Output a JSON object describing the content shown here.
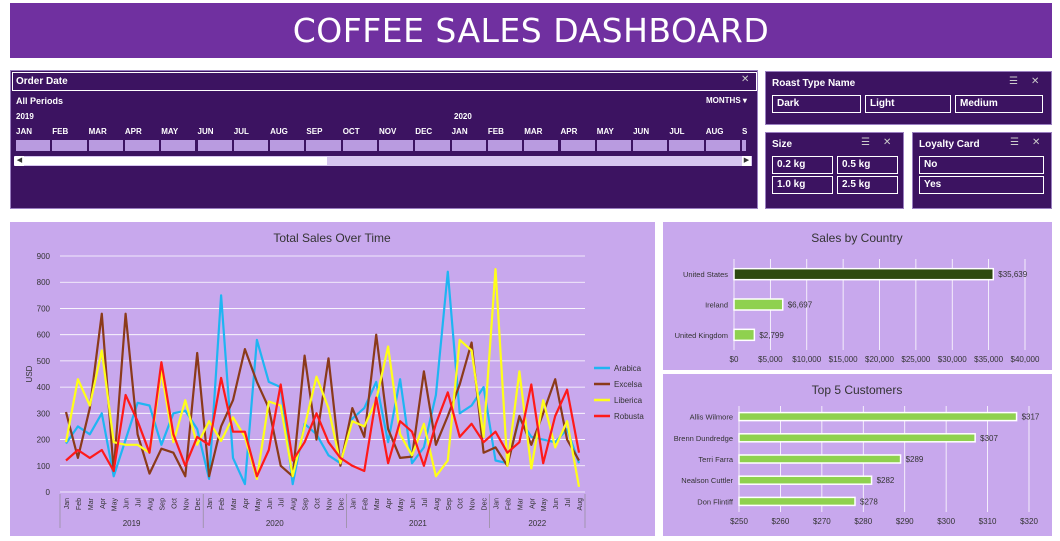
{
  "title": "COFFEE SALES DASHBOARD",
  "timeline": {
    "title": "Order Date",
    "period_label": "All Periods",
    "granularity": "MONTHS",
    "years": [
      "2019",
      "2020"
    ],
    "months": [
      "JAN",
      "FEB",
      "MAR",
      "APR",
      "MAY",
      "JUN",
      "JUL",
      "AUG",
      "SEP",
      "OCT",
      "NOV",
      "DEC",
      "JAN",
      "FEB",
      "MAR",
      "APR",
      "MAY",
      "JUN",
      "JUL",
      "AUG",
      "S"
    ]
  },
  "roast_slicer": {
    "title": "Roast Type Name",
    "items": [
      "Dark",
      "Light",
      "Medium"
    ]
  },
  "size_slicer": {
    "title": "Size",
    "items": [
      "0.2 kg",
      "0.5 kg",
      "1.0 kg",
      "2.5 kg"
    ]
  },
  "loyalty_slicer": {
    "title": "Loyalty Card",
    "items": [
      "No",
      "Yes"
    ]
  },
  "colors": {
    "banner": "#7030a0",
    "arabica": "#1fb5f2",
    "excelsa": "#8b3a1a",
    "liberica": "#ffff1a",
    "robusta": "#ff1a1a",
    "country_top": "#2e4a10",
    "bars": "#8fd14f"
  },
  "chart_data": [
    {
      "type": "line",
      "title": "Total Sales Over Time",
      "ylabel": "USD",
      "ylim": [
        0,
        900
      ],
      "yticks": [
        "0",
        "100",
        "200",
        "300",
        "400",
        "500",
        "600",
        "700",
        "800",
        "900"
      ],
      "years": [
        "2019",
        "2020",
        "2021",
        "2022"
      ],
      "month_labels": [
        "Jan",
        "Feb",
        "Mar",
        "Apr",
        "May",
        "Jun",
        "Jul",
        "Aug",
        "Sep",
        "Oct",
        "Nov",
        "Dec",
        "Jan",
        "Feb",
        "Mar",
        "Apr",
        "May",
        "Jun",
        "Jul",
        "Aug",
        "Sep",
        "Oct",
        "Nov",
        "Dec",
        "Jan",
        "Feb",
        "Mar",
        "Apr",
        "May",
        "Jun",
        "Jul",
        "Aug",
        "Sep",
        "Oct",
        "Nov",
        "Dec",
        "Jan",
        "Feb",
        "Mar",
        "Apr",
        "May",
        "Jun",
        "Jul",
        "Aug"
      ],
      "series": [
        {
          "name": "Arabica",
          "values": [
            185,
            250,
            220,
            300,
            60,
            200,
            340,
            330,
            180,
            300,
            310,
            240,
            50,
            750,
            130,
            30,
            580,
            420,
            400,
            30,
            260,
            220,
            140,
            110,
            280,
            320,
            420,
            190,
            430,
            110,
            170,
            370,
            840,
            300,
            330,
            400,
            120,
            110,
            280,
            210,
            200,
            190,
            240,
            110
          ]
        },
        {
          "name": "Excelsa",
          "values": [
            305,
            130,
            320,
            680,
            80,
            680,
            220,
            70,
            165,
            150,
            60,
            530,
            60,
            250,
            350,
            545,
            420,
            320,
            100,
            60,
            520,
            200,
            510,
            100,
            320,
            210,
            600,
            240,
            130,
            135,
            460,
            180,
            290,
            410,
            570,
            150,
            170,
            100,
            290,
            180,
            300,
            430,
            200,
            120
          ]
        },
        {
          "name": "Liberica",
          "values": [
            190,
            430,
            330,
            540,
            190,
            180,
            180,
            150,
            460,
            190,
            350,
            180,
            270,
            195,
            285,
            210,
            50,
            345,
            330,
            60,
            250,
            440,
            320,
            110,
            270,
            250,
            350,
            555,
            220,
            140,
            260,
            60,
            120,
            580,
            540,
            210,
            850,
            100,
            460,
            90,
            350,
            170,
            270,
            20
          ]
        },
        {
          "name": "Robusta",
          "values": [
            120,
            160,
            130,
            160,
            80,
            370,
            270,
            150,
            495,
            220,
            100,
            210,
            180,
            435,
            230,
            230,
            60,
            160,
            410,
            120,
            190,
            300,
            190,
            130,
            100,
            80,
            360,
            110,
            270,
            230,
            100,
            260,
            380,
            210,
            260,
            190,
            230,
            150,
            190,
            410,
            110,
            290,
            390,
            150
          ]
        }
      ]
    },
    {
      "type": "bar",
      "orientation": "horizontal",
      "title": "Sales by Country",
      "categories": [
        "United States",
        "Ireland",
        "United Kingdom"
      ],
      "values": [
        35639,
        6697,
        2799
      ],
      "data_labels": [
        "$35,639",
        "$6,697",
        "$2,799"
      ],
      "xlim": [
        0,
        40000
      ],
      "xticks": [
        "$0",
        "$5,000",
        "$10,000",
        "$15,000",
        "$20,000",
        "$25,000",
        "$30,000",
        "$35,000",
        "$40,000"
      ]
    },
    {
      "type": "bar",
      "orientation": "horizontal",
      "title": "Top 5 Customers",
      "categories": [
        "Allis Wilmore",
        "Brenn Dundredge",
        "Terri Farra",
        "Nealson Cuttler",
        "Don Flintiff"
      ],
      "values": [
        317,
        307,
        289,
        282,
        278
      ],
      "data_labels": [
        "$317",
        "$307",
        "$289",
        "$282",
        "$278"
      ],
      "xlim": [
        250,
        320
      ],
      "xticks": [
        "$250",
        "$260",
        "$270",
        "$280",
        "$290",
        "$300",
        "$310",
        "$320"
      ]
    }
  ]
}
